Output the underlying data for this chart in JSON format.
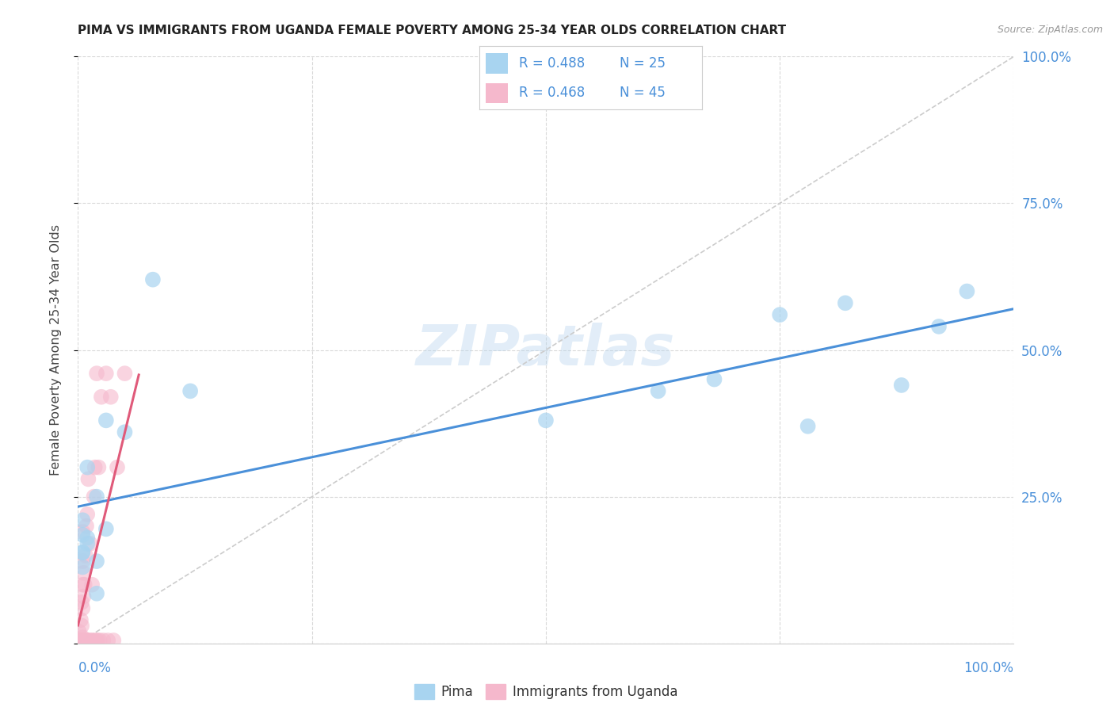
{
  "title": "PIMA VS IMMIGRANTS FROM UGANDA FEMALE POVERTY AMONG 25-34 YEAR OLDS CORRELATION CHART",
  "source": "Source: ZipAtlas.com",
  "ylabel": "Female Poverty Among 25-34 Year Olds",
  "pima_R": 0.488,
  "pima_N": 25,
  "uganda_R": 0.468,
  "uganda_N": 45,
  "pima_color": "#a8d4f0",
  "uganda_color": "#f5b8cc",
  "pima_line_color": "#4a90d9",
  "uganda_line_color": "#e05a7a",
  "watermark": "ZIPatlas",
  "pima_points_x": [
    0.08,
    0.005,
    0.01,
    0.02,
    0.01,
    0.005,
    0.005,
    0.005,
    0.005,
    0.01,
    0.03,
    0.02,
    0.02,
    0.05,
    0.03,
    0.12,
    0.5,
    0.62,
    0.68,
    0.75,
    0.78,
    0.82,
    0.88,
    0.92,
    0.95
  ],
  "pima_points_y": [
    0.62,
    0.155,
    0.18,
    0.25,
    0.3,
    0.21,
    0.185,
    0.155,
    0.13,
    0.17,
    0.195,
    0.14,
    0.085,
    0.36,
    0.38,
    0.43,
    0.38,
    0.43,
    0.45,
    0.56,
    0.37,
    0.58,
    0.44,
    0.54,
    0.6
  ],
  "uganda_points_x": [
    0.001,
    0.001,
    0.002,
    0.003,
    0.003,
    0.004,
    0.004,
    0.004,
    0.005,
    0.005,
    0.005,
    0.005,
    0.005,
    0.006,
    0.006,
    0.006,
    0.007,
    0.007,
    0.008,
    0.008,
    0.009,
    0.009,
    0.01,
    0.01,
    0.011,
    0.012,
    0.013,
    0.014,
    0.015,
    0.016,
    0.017,
    0.018,
    0.019,
    0.02,
    0.021,
    0.022,
    0.023,
    0.025,
    0.027,
    0.03,
    0.032,
    0.035,
    0.038,
    0.042,
    0.05
  ],
  "uganda_points_y": [
    0.005,
    0.02,
    0.005,
    0.005,
    0.04,
    0.005,
    0.03,
    0.07,
    0.01,
    0.06,
    0.1,
    0.14,
    0.19,
    0.005,
    0.08,
    0.12,
    0.005,
    0.1,
    0.005,
    0.15,
    0.005,
    0.2,
    0.005,
    0.22,
    0.28,
    0.005,
    0.17,
    0.005,
    0.1,
    0.005,
    0.25,
    0.3,
    0.005,
    0.46,
    0.005,
    0.3,
    0.005,
    0.42,
    0.005,
    0.46,
    0.005,
    0.42,
    0.005,
    0.3,
    0.46
  ]
}
